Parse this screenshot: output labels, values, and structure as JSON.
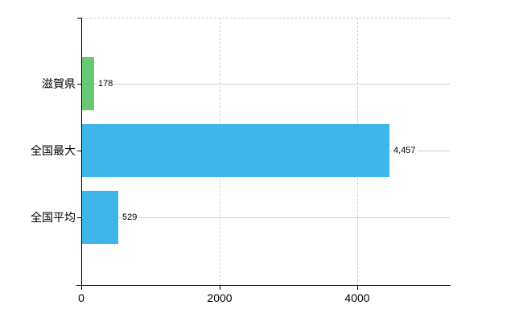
{
  "chart_data": {
    "type": "bar",
    "orientation": "horizontal",
    "title": "",
    "xlabel": "",
    "ylabel": "",
    "categories": [
      "滋賀県",
      "全国最大",
      "全国平均"
    ],
    "values": [
      178,
      4457,
      529
    ],
    "value_labels": [
      "178",
      "4,457",
      "529"
    ],
    "bar_colors": [
      "#66c873",
      "#3eb6e9",
      "#3eb6e9"
    ],
    "xlim": [
      0,
      5341
    ],
    "xticks": [
      0,
      2000,
      4000
    ],
    "xtick_labels": [
      "0",
      "2000",
      "4000"
    ],
    "legend": "none",
    "grid": {
      "vertical": "dashed at xticks",
      "horizontal": "solid at category centers",
      "top_border": "dashed"
    },
    "colors": {
      "axis": "#000000",
      "grid_vertical": "#cfcfcf",
      "grid_horizontal": "#ccd2cc",
      "text": "#000000",
      "background": "#ffffff"
    }
  }
}
